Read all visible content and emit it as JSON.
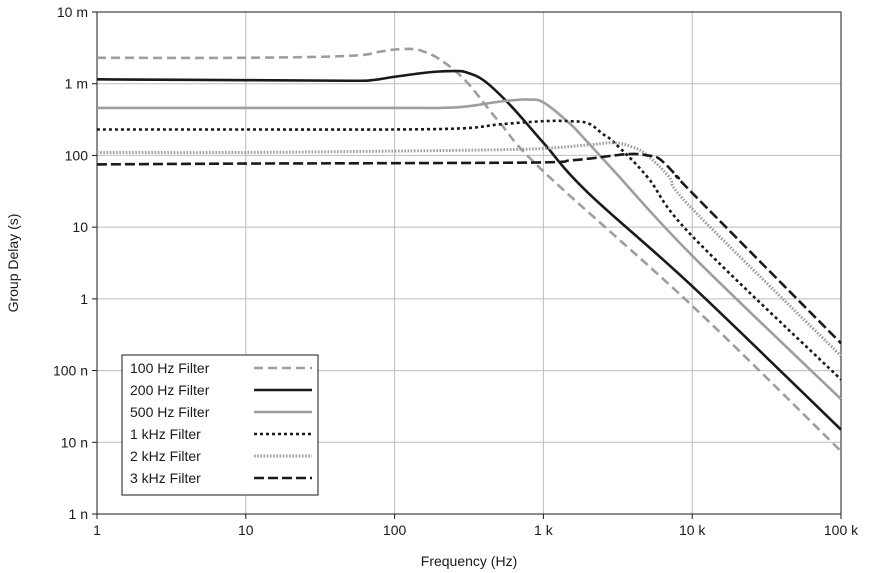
{
  "chart_data": {
    "type": "line",
    "title": "",
    "xlabel": "Frequency (Hz)",
    "ylabel": "Group Delay (s)",
    "x_scale": "log",
    "y_scale": "log",
    "xlim": [
      1,
      100000
    ],
    "ylim": [
      1e-09,
      0.01
    ],
    "grid": true,
    "legend_position": "bottom-left",
    "x_ticks": [
      {
        "value": 1,
        "label": "1"
      },
      {
        "value": 10,
        "label": "10"
      },
      {
        "value": 100,
        "label": "100"
      },
      {
        "value": 1000,
        "label": "1 k"
      },
      {
        "value": 10000,
        "label": "10 k"
      },
      {
        "value": 100000,
        "label": "100 k"
      }
    ],
    "y_ticks": [
      {
        "value": 1e-09,
        "label": "1 n"
      },
      {
        "value": 1e-08,
        "label": "10 n"
      },
      {
        "value": 1e-07,
        "label": "100 n"
      },
      {
        "value": 1e-06,
        "label": "1"
      },
      {
        "value": 1e-05,
        "label": "10"
      },
      {
        "value": 0.0001,
        "label": "100"
      },
      {
        "value": 0.001,
        "label": "1 m"
      },
      {
        "value": 0.01,
        "label": "10 m"
      }
    ],
    "series": [
      {
        "name": "100 Hz Filter",
        "color": "#9e9e9e",
        "dash": "dashed",
        "x": [
          1,
          10,
          50,
          80,
          100,
          130,
          150,
          200,
          300,
          500,
          1000,
          10000,
          100000
        ],
        "y": [
          0.0023,
          0.0023,
          0.00245,
          0.0028,
          0.003,
          0.00305,
          0.0029,
          0.0022,
          0.0011,
          0.0003,
          6e-05,
          8e-07,
          7.5e-09
        ]
      },
      {
        "name": "200 Hz Filter",
        "color": "#1a1a1a",
        "dash": "solid",
        "x": [
          1,
          10,
          50,
          70,
          100,
          150,
          200,
          260,
          300,
          400,
          600,
          1000,
          2000,
          10000,
          100000
        ],
        "y": [
          0.00115,
          0.00112,
          0.0011,
          0.00112,
          0.00125,
          0.0014,
          0.00148,
          0.0015,
          0.00145,
          0.0011,
          0.0005,
          0.00015,
          3e-05,
          1.5e-06,
          1.5e-08
        ]
      },
      {
        "name": "500 Hz Filter",
        "color": "#9e9e9e",
        "dash": "solid",
        "x": [
          1,
          10,
          100,
          200,
          300,
          500,
          700,
          800,
          1000,
          1500,
          2000,
          3000,
          10000,
          100000
        ],
        "y": [
          0.00046,
          0.00046,
          0.00046,
          0.00046,
          0.00048,
          0.00056,
          0.0006,
          0.0006,
          0.00055,
          0.00028,
          0.00015,
          6e-05,
          4e-06,
          4e-08
        ]
      },
      {
        "name": "1 kHz Filter",
        "color": "#1a1a1a",
        "dash": "dotted",
        "x": [
          1,
          10,
          100,
          300,
          500,
          1000,
          1500,
          2000,
          2500,
          3000,
          5000,
          10000,
          100000
        ],
        "y": [
          0.00023,
          0.00023,
          0.00023,
          0.00024,
          0.00027,
          0.0003,
          0.0003,
          0.00028,
          0.0002,
          0.00015,
          5e-05,
          7.5e-06,
          7.5e-08
        ]
      },
      {
        "name": "2 kHz Filter",
        "color": "#9e9e9e",
        "dash": "fine-dotted",
        "x": [
          1,
          10,
          100,
          500,
          1000,
          2000,
          3000,
          4000,
          5000,
          7000,
          10000,
          100000
        ],
        "y": [
          0.00011,
          0.00011,
          0.000115,
          0.00012,
          0.000125,
          0.00014,
          0.00015,
          0.00013,
          0.0001,
          5e-05,
          1.8e-05,
          1.6e-07
        ]
      },
      {
        "name": "3 kHz Filter",
        "color": "#1a1a1a",
        "dash": "long-dashed",
        "x": [
          1,
          10,
          100,
          1000,
          1500,
          2000,
          3000,
          4000,
          5000,
          6000,
          8000,
          10000,
          100000
        ],
        "y": [
          7.5e-05,
          7.7e-05,
          7.8e-05,
          8e-05,
          8.5e-05,
          9e-05,
          0.0001,
          0.000105,
          0.0001,
          9e-05,
          5e-05,
          3e-05,
          2.4e-07
        ]
      }
    ]
  }
}
